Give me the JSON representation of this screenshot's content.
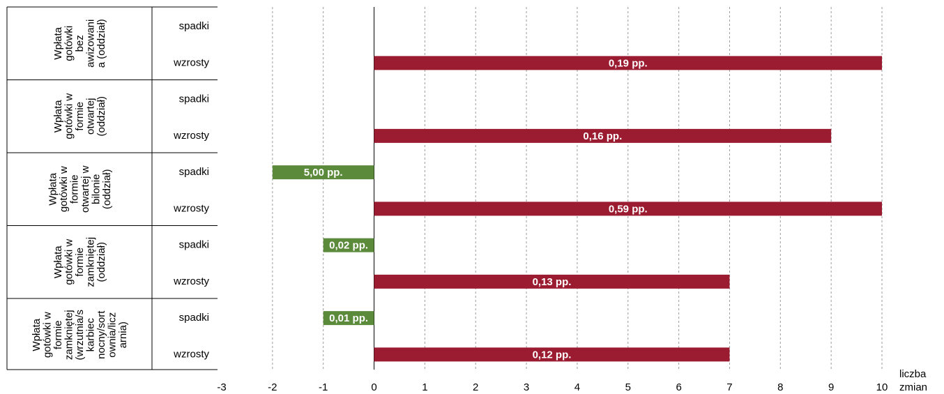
{
  "chart_data": {
    "type": "bar",
    "orientation": "horizontal",
    "x_unit_label": [
      "liczba",
      "zmian"
    ],
    "xlim": [
      -3,
      10
    ],
    "x_ticks": [
      "-3",
      "-2",
      "-1",
      "0",
      "1",
      "2",
      "3",
      "4",
      "5",
      "6",
      "7",
      "8",
      "9",
      "10"
    ],
    "grid": "vertical dashed",
    "colors": {
      "spadki": "#5b8a3a",
      "wzrosty": "#9b1b30"
    },
    "groups": [
      {
        "label_lines": [
          "Wpłata",
          "gotówki",
          "bez",
          "awizowani",
          "a (oddział)"
        ],
        "rows": [
          {
            "category": "spadki",
            "value": null,
            "label": null
          },
          {
            "category": "wzrosty",
            "value": 10,
            "label": "0,19 pp."
          }
        ]
      },
      {
        "label_lines": [
          "Wpłata",
          "gotówki w",
          "formie",
          "otwartej",
          "(oddział)"
        ],
        "rows": [
          {
            "category": "spadki",
            "value": null,
            "label": null
          },
          {
            "category": "wzrosty",
            "value": 9,
            "label": "0,16 pp."
          }
        ]
      },
      {
        "label_lines": [
          "Wpłata",
          "gotówki w",
          "formie",
          "otwartej w",
          "bilonie",
          "(oddział)"
        ],
        "rows": [
          {
            "category": "spadki",
            "value": -2,
            "label": "5,00 pp."
          },
          {
            "category": "wzrosty",
            "value": 10,
            "label": "0,59 pp."
          }
        ]
      },
      {
        "label_lines": [
          "Wpłata",
          "gotówki w",
          "formie",
          "zamkniętej",
          "(oddział)"
        ],
        "rows": [
          {
            "category": "spadki",
            "value": -1,
            "label": "0,02 pp."
          },
          {
            "category": "wzrosty",
            "value": 7,
            "label": "0,13 pp."
          }
        ]
      },
      {
        "label_lines": [
          "Wpłata",
          "gotówki w",
          "formie",
          "zamkniętej",
          "(wrzutnia/s",
          "karbiec",
          "nocny/sort",
          "ownia/licz",
          "arnia)"
        ],
        "rows": [
          {
            "category": "spadki",
            "value": -1,
            "label": "0,01 pp."
          },
          {
            "category": "wzrosty",
            "value": 7,
            "label": "0,12 pp."
          }
        ]
      }
    ]
  }
}
